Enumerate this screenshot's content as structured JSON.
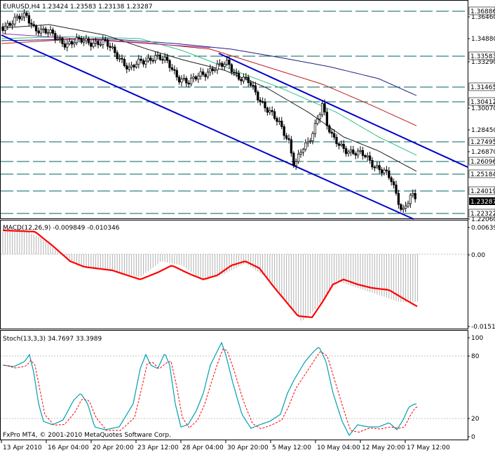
{
  "main_panel": {
    "header": "EURUSD,H4  1.23424 1.23583 1.23138 1.23287",
    "price_labels": [
      {
        "text": "1.36886",
        "highlight": true
      },
      {
        "text": "1.36460",
        "highlight": false
      },
      {
        "text": "1.34880",
        "highlight": false
      },
      {
        "text": "1.33583",
        "highlight": true
      },
      {
        "text": "1.33290",
        "highlight": false
      },
      {
        "text": "1.31465",
        "highlight": true
      },
      {
        "text": "1.30412",
        "highlight": true
      },
      {
        "text": "1.30070",
        "highlight": false
      },
      {
        "text": "1.28450",
        "highlight": false
      },
      {
        "text": "1.27495",
        "highlight": true
      },
      {
        "text": "1.26870",
        "highlight": false
      },
      {
        "text": "1.26096",
        "highlight": true
      },
      {
        "text": "1.25184",
        "highlight": true
      },
      {
        "text": "1.24019",
        "highlight": true
      },
      {
        "text": "1.23287",
        "highlight": false,
        "current": true
      },
      {
        "text": "1.22322",
        "highlight": true
      },
      {
        "text": "1.22060",
        "highlight": false
      }
    ]
  },
  "macd_panel": {
    "header": "MACD(12,26,9) -0.009849 -0.010346",
    "scale": [
      "0.00639",
      "0.00",
      "-0.0151"
    ]
  },
  "stoch_panel": {
    "header": "Stoch(13,3,3) 34.7697 33.3989",
    "scale": [
      "100",
      "80",
      "20",
      "0"
    ],
    "copyright": "FxPro MT4, © 2001-2010 MetaQuotes Software Corp."
  },
  "time_axis": [
    "13 Apr 2010",
    "16 Apr 04:00",
    "20 Apr 20:00",
    "23 Apr 12:00",
    "28 Apr 04:00",
    "30 Apr 20:00",
    "5 May 12:00",
    "10 May 04:00",
    "12 May 20:00",
    "17 May 12:00"
  ],
  "colors": {
    "background": "#ffffff",
    "candle": "#000000",
    "channel": "#0000cc",
    "level_line": "#006060",
    "macd_hist": "#b0b0b0",
    "macd_signal": "#ff0000",
    "stoch_main": "#00a0b0",
    "stoch_signal": "#ff0000"
  }
}
